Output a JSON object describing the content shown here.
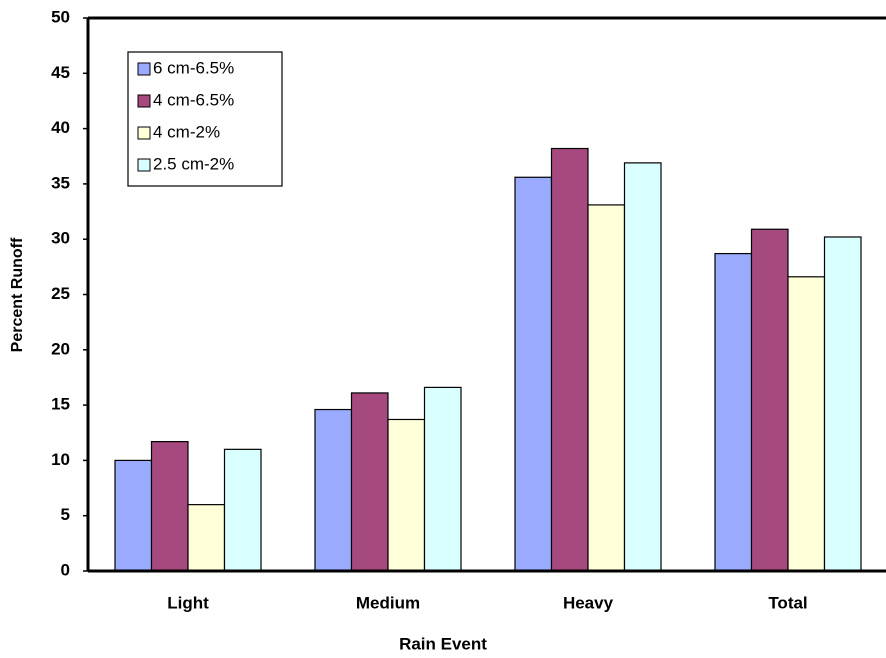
{
  "chart_data": {
    "type": "bar",
    "x_label": "Rain Event",
    "y_label": "Percent Runoff",
    "categories": [
      "Light",
      "Medium",
      "Heavy",
      "Total"
    ],
    "series": [
      {
        "name": "6 cm-6.5%",
        "color": "#99aaff",
        "values": [
          10.0,
          14.6,
          35.6,
          28.7
        ]
      },
      {
        "name": "4 cm-6.5%",
        "color": "#a6497f",
        "values": [
          11.7,
          16.1,
          38.2,
          30.9
        ]
      },
      {
        "name": "4 cm-2%",
        "color": "#ffffd9",
        "values": [
          6.0,
          13.7,
          33.1,
          26.6
        ]
      },
      {
        "name": "2.5 cm-2%",
        "color": "#d9ffff",
        "values": [
          11.0,
          16.6,
          36.9,
          30.2
        ]
      }
    ],
    "ylim": [
      0,
      50
    ],
    "yticks": [
      0,
      5,
      10,
      15,
      20,
      25,
      30,
      35,
      40,
      45,
      50
    ],
    "grid": false,
    "legend": "upper left"
  }
}
